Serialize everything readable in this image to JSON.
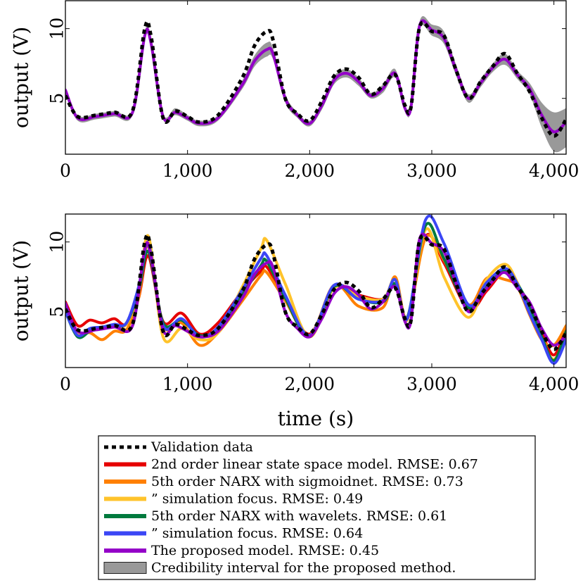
{
  "chart_data": [
    {
      "type": "line",
      "xlim": [
        0,
        4100
      ],
      "ylim": [
        1,
        12
      ],
      "xticks": [
        0,
        1000,
        2000,
        3000,
        4000
      ],
      "xtick_labels": [
        "0",
        "1,000",
        "2,000",
        "3,000",
        "4,000"
      ],
      "yticks": [
        5,
        10
      ],
      "ytick_labels": [
        "5",
        "10"
      ],
      "ylabel": "output (V)",
      "xlabel": "",
      "grid": false,
      "series": [
        {
          "key": "validation",
          "x": [
            0,
            100,
            250,
            400,
            550,
            650,
            700,
            800,
            900,
            1000,
            1100,
            1250,
            1450,
            1550,
            1650,
            1700,
            1800,
            1900,
            2000,
            2100,
            2200,
            2300,
            2400,
            2500,
            2600,
            2700,
            2780,
            2830,
            2900,
            3000,
            3100,
            3200,
            3300,
            3400,
            3500,
            3600,
            3700,
            3800,
            3900,
            4000,
            4100
          ],
          "values": [
            5.2,
            3.7,
            3.8,
            4.0,
            4.1,
            10.0,
            9.5,
            3.6,
            4.1,
            3.7,
            3.3,
            3.8,
            6.5,
            8.8,
            9.8,
            9.2,
            5.0,
            3.9,
            3.4,
            4.8,
            6.6,
            7.1,
            6.5,
            5.3,
            5.9,
            6.7,
            4.5,
            4.4,
            10.1,
            9.8,
            9.5,
            7.0,
            5.0,
            6.2,
            7.3,
            8.2,
            6.8,
            5.5,
            3.6,
            2.3,
            3.5
          ]
        },
        {
          "key": "proposed",
          "x": [
            0,
            100,
            250,
            400,
            550,
            650,
            700,
            800,
            900,
            1000,
            1100,
            1250,
            1450,
            1550,
            1650,
            1700,
            1800,
            1900,
            2000,
            2100,
            2200,
            2300,
            2400,
            2500,
            2600,
            2700,
            2780,
            2830,
            2900,
            3000,
            3100,
            3200,
            3300,
            3400,
            3500,
            3600,
            3700,
            3800,
            3900,
            4000,
            4100
          ],
          "values": [
            5.6,
            3.6,
            3.7,
            3.9,
            4.0,
            9.5,
            9.0,
            3.7,
            4.0,
            3.6,
            3.2,
            3.6,
            6.0,
            7.7,
            8.5,
            8.2,
            5.0,
            3.8,
            3.2,
            4.5,
            6.3,
            6.8,
            6.2,
            5.2,
            5.7,
            6.8,
            4.3,
            4.4,
            10.2,
            9.9,
            9.3,
            7.0,
            5.0,
            6.1,
            7.2,
            7.8,
            6.7,
            5.7,
            3.8,
            2.6,
            3.3
          ]
        }
      ],
      "band": {
        "key": "credibility",
        "x": [
          0,
          100,
          250,
          400,
          550,
          650,
          700,
          800,
          900,
          1000,
          1100,
          1250,
          1450,
          1550,
          1650,
          1700,
          1800,
          1900,
          2000,
          2100,
          2200,
          2300,
          2400,
          2500,
          2600,
          2700,
          2780,
          2830,
          2900,
          3000,
          3100,
          3200,
          3300,
          3400,
          3500,
          3600,
          3700,
          3800,
          3900,
          4000,
          4100
        ],
        "lower": [
          5.4,
          3.4,
          3.5,
          3.7,
          3.8,
          9.2,
          8.7,
          3.5,
          3.8,
          3.4,
          3.0,
          3.4,
          5.7,
          7.3,
          8.0,
          7.8,
          4.7,
          3.6,
          3.0,
          4.2,
          6.0,
          6.5,
          5.9,
          5.0,
          5.4,
          6.5,
          4.1,
          4.2,
          9.9,
          9.5,
          8.9,
          6.6,
          4.7,
          5.8,
          6.9,
          7.4,
          6.4,
          5.3,
          2.9,
          1.2,
          1.5
        ],
        "upper": [
          5.8,
          3.8,
          3.9,
          4.1,
          4.2,
          9.8,
          9.3,
          3.9,
          4.3,
          3.8,
          3.4,
          3.8,
          6.3,
          8.1,
          9.0,
          8.6,
          5.3,
          4.0,
          3.4,
          4.8,
          6.6,
          7.1,
          6.5,
          5.4,
          6.0,
          7.1,
          4.5,
          4.6,
          10.5,
          10.3,
          9.8,
          7.4,
          5.3,
          6.4,
          7.5,
          8.2,
          7.0,
          6.1,
          4.7,
          4.0,
          4.3
        ]
      }
    },
    {
      "type": "line",
      "xlim": [
        0,
        4100
      ],
      "ylim": [
        1,
        12
      ],
      "xticks": [
        0,
        1000,
        2000,
        3000,
        4000
      ],
      "xtick_labels": [
        "0",
        "1,000",
        "2,000",
        "3,000",
        "4,000"
      ],
      "yticks": [
        5,
        10
      ],
      "ytick_labels": [
        "5",
        "10"
      ],
      "ylabel": "output (V)",
      "xlabel": "time (s)",
      "grid": false,
      "series": [
        {
          "key": "validation",
          "x": [
            0,
            100,
            250,
            400,
            550,
            650,
            700,
            800,
            900,
            1000,
            1100,
            1250,
            1450,
            1550,
            1650,
            1700,
            1800,
            1900,
            2000,
            2100,
            2200,
            2300,
            2400,
            2500,
            2600,
            2700,
            2780,
            2830,
            2900,
            3000,
            3100,
            3200,
            3300,
            3400,
            3500,
            3600,
            3700,
            3800,
            3900,
            4000,
            4100
          ],
          "values": [
            5.2,
            3.7,
            3.8,
            4.0,
            4.1,
            10.0,
            9.5,
            3.6,
            4.1,
            3.7,
            3.3,
            3.8,
            6.5,
            8.8,
            9.8,
            9.2,
            5.0,
            3.9,
            3.4,
            4.8,
            6.6,
            7.1,
            6.5,
            5.3,
            5.9,
            6.7,
            4.5,
            4.4,
            10.1,
            9.8,
            9.5,
            7.0,
            5.0,
            6.2,
            7.3,
            8.2,
            6.8,
            5.5,
            3.6,
            2.3,
            3.5
          ]
        },
        {
          "key": "linear_ss",
          "x": [
            0,
            100,
            200,
            300,
            400,
            500,
            600,
            680,
            800,
            950,
            1100,
            1250,
            1450,
            1600,
            1650,
            1800,
            2000,
            2200,
            2400,
            2600,
            2700,
            2800,
            2950,
            3100,
            3300,
            3450,
            3600,
            3700,
            3800,
            3900,
            4000,
            4100
          ],
          "values": [
            5.7,
            4.0,
            4.4,
            4.2,
            4.5,
            4.1,
            6.0,
            9.0,
            4.3,
            4.9,
            3.4,
            4.2,
            6.5,
            7.9,
            8.2,
            6.0,
            3.4,
            6.8,
            6.2,
            5.9,
            7.0,
            4.6,
            10.4,
            8.5,
            5.2,
            6.5,
            7.9,
            6.8,
            5.4,
            3.5,
            1.9,
            3.8
          ]
        },
        {
          "key": "narx_sig",
          "x": [
            0,
            100,
            200,
            300,
            400,
            500,
            600,
            680,
            800,
            950,
            1100,
            1250,
            1450,
            1600,
            1650,
            1800,
            2000,
            2200,
            2400,
            2600,
            2700,
            2800,
            2950,
            3100,
            3300,
            3450,
            3600,
            3700,
            3800,
            3900,
            4000,
            4100
          ],
          "values": [
            5.0,
            3.4,
            3.5,
            3.0,
            3.6,
            3.7,
            6.0,
            9.8,
            4.0,
            4.2,
            2.6,
            3.5,
            5.8,
            7.6,
            7.8,
            5.8,
            3.3,
            6.9,
            5.4,
            5.3,
            7.5,
            4.5,
            10.3,
            8.7,
            5.5,
            7.4,
            7.3,
            6.8,
            4.8,
            3.0,
            2.6,
            4.0
          ]
        },
        {
          "key": "narx_sig_sim",
          "x": [
            0,
            100,
            200,
            300,
            400,
            500,
            600,
            680,
            800,
            950,
            1100,
            1250,
            1450,
            1600,
            1650,
            1800,
            2000,
            2200,
            2400,
            2600,
            2700,
            2800,
            2950,
            3100,
            3300,
            3450,
            3600,
            3700,
            3800,
            3900,
            4000,
            4100
          ],
          "values": [
            5.0,
            3.4,
            3.7,
            3.8,
            4.0,
            4.1,
            6.5,
            10.4,
            3.2,
            3.8,
            3.0,
            3.5,
            6.8,
            9.5,
            10.1,
            7.0,
            3.2,
            6.7,
            6.1,
            5.9,
            7.3,
            4.4,
            10.9,
            7.5,
            4.6,
            7.3,
            8.4,
            7.1,
            5.0,
            3.0,
            1.6,
            3.2
          ]
        },
        {
          "key": "narx_wav",
          "x": [
            0,
            100,
            200,
            300,
            400,
            500,
            600,
            680,
            800,
            950,
            1100,
            1250,
            1450,
            1600,
            1650,
            1800,
            2000,
            2200,
            2400,
            2600,
            2700,
            2800,
            2950,
            3100,
            3300,
            3450,
            3600,
            3700,
            3800,
            3900,
            4000,
            4100
          ],
          "values": [
            5.0,
            3.2,
            3.6,
            3.9,
            4.0,
            4.2,
            6.5,
            9.3,
            4.2,
            4.4,
            3.3,
            3.8,
            6.2,
            8.3,
            8.6,
            6.0,
            3.2,
            6.8,
            5.9,
            5.7,
            7.0,
            4.6,
            11.2,
            8.8,
            5.3,
            6.8,
            8.0,
            7.0,
            5.4,
            3.2,
            1.5,
            3.6
          ]
        },
        {
          "key": "narx_wav_sim",
          "x": [
            0,
            100,
            200,
            300,
            400,
            500,
            600,
            680,
            800,
            950,
            1100,
            1250,
            1450,
            1600,
            1650,
            1800,
            2000,
            2200,
            2400,
            2600,
            2700,
            2800,
            2950,
            3100,
            3300,
            3450,
            3600,
            3700,
            3800,
            3900,
            4000,
            4100
          ],
          "values": [
            5.0,
            3.3,
            3.8,
            3.9,
            4.1,
            4.2,
            6.8,
            9.8,
            4.0,
            4.5,
            3.2,
            3.9,
            6.6,
            8.8,
            9.0,
            6.2,
            3.3,
            6.9,
            5.9,
            5.8,
            7.3,
            4.5,
            11.6,
            9.9,
            5.5,
            7.1,
            8.1,
            7.0,
            4.9,
            3.0,
            1.3,
            3.0
          ]
        },
        {
          "key": "proposed",
          "x": [
            0,
            100,
            250,
            400,
            550,
            650,
            700,
            800,
            900,
            1000,
            1100,
            1250,
            1450,
            1550,
            1650,
            1700,
            1800,
            1900,
            2000,
            2100,
            2200,
            2300,
            2400,
            2500,
            2600,
            2700,
            2780,
            2830,
            2900,
            3000,
            3100,
            3200,
            3300,
            3400,
            3500,
            3600,
            3700,
            3800,
            3900,
            4000,
            4100
          ],
          "values": [
            5.6,
            3.6,
            3.7,
            3.9,
            4.0,
            9.5,
            9.0,
            3.7,
            4.0,
            3.6,
            3.2,
            3.6,
            6.0,
            7.7,
            8.5,
            8.2,
            5.0,
            3.8,
            3.2,
            4.5,
            6.3,
            6.8,
            6.2,
            5.2,
            5.7,
            6.8,
            4.3,
            4.4,
            10.2,
            9.9,
            9.3,
            7.0,
            5.0,
            6.1,
            7.2,
            7.8,
            6.7,
            5.7,
            3.8,
            2.6,
            3.3
          ]
        }
      ]
    }
  ],
  "styles": {
    "validation": {
      "color": "#000000",
      "dash": "6 5",
      "width": 5
    },
    "linear_ss": {
      "color": "#e60000",
      "width": 4
    },
    "narx_sig": {
      "color": "#ff8000",
      "width": 4
    },
    "narx_sig_sim": {
      "color": "#ffc32b",
      "width": 4
    },
    "narx_wav": {
      "color": "#007a3d",
      "width": 4
    },
    "narx_wav_sim": {
      "color": "#3b46f5",
      "width": 4
    },
    "proposed": {
      "color": "#9400c8",
      "width": 4
    },
    "credibility": {
      "color": "#999999",
      "stroke": "#222222"
    }
  },
  "legend": {
    "placement": "bottom-center",
    "entries": [
      {
        "key": "validation",
        "label": "Validation data"
      },
      {
        "key": "linear_ss",
        "label": "2nd order linear state space model. RMSE: 0.67"
      },
      {
        "key": "narx_sig",
        "label": "5th order NARX with sigmoidnet. RMSE: 0.73"
      },
      {
        "key": "narx_sig_sim",
        "label": "”              simulation focus. RMSE: 0.49"
      },
      {
        "key": "narx_wav",
        "label": "5th order NARX with wavelets. RMSE: 0.61"
      },
      {
        "key": "narx_wav_sim",
        "label": "”              simulation focus. RMSE: 0.64"
      },
      {
        "key": "proposed",
        "label": "The proposed model. RMSE: 0.45"
      },
      {
        "key": "credibility",
        "label": "Credibility interval for the proposed method."
      }
    ]
  }
}
